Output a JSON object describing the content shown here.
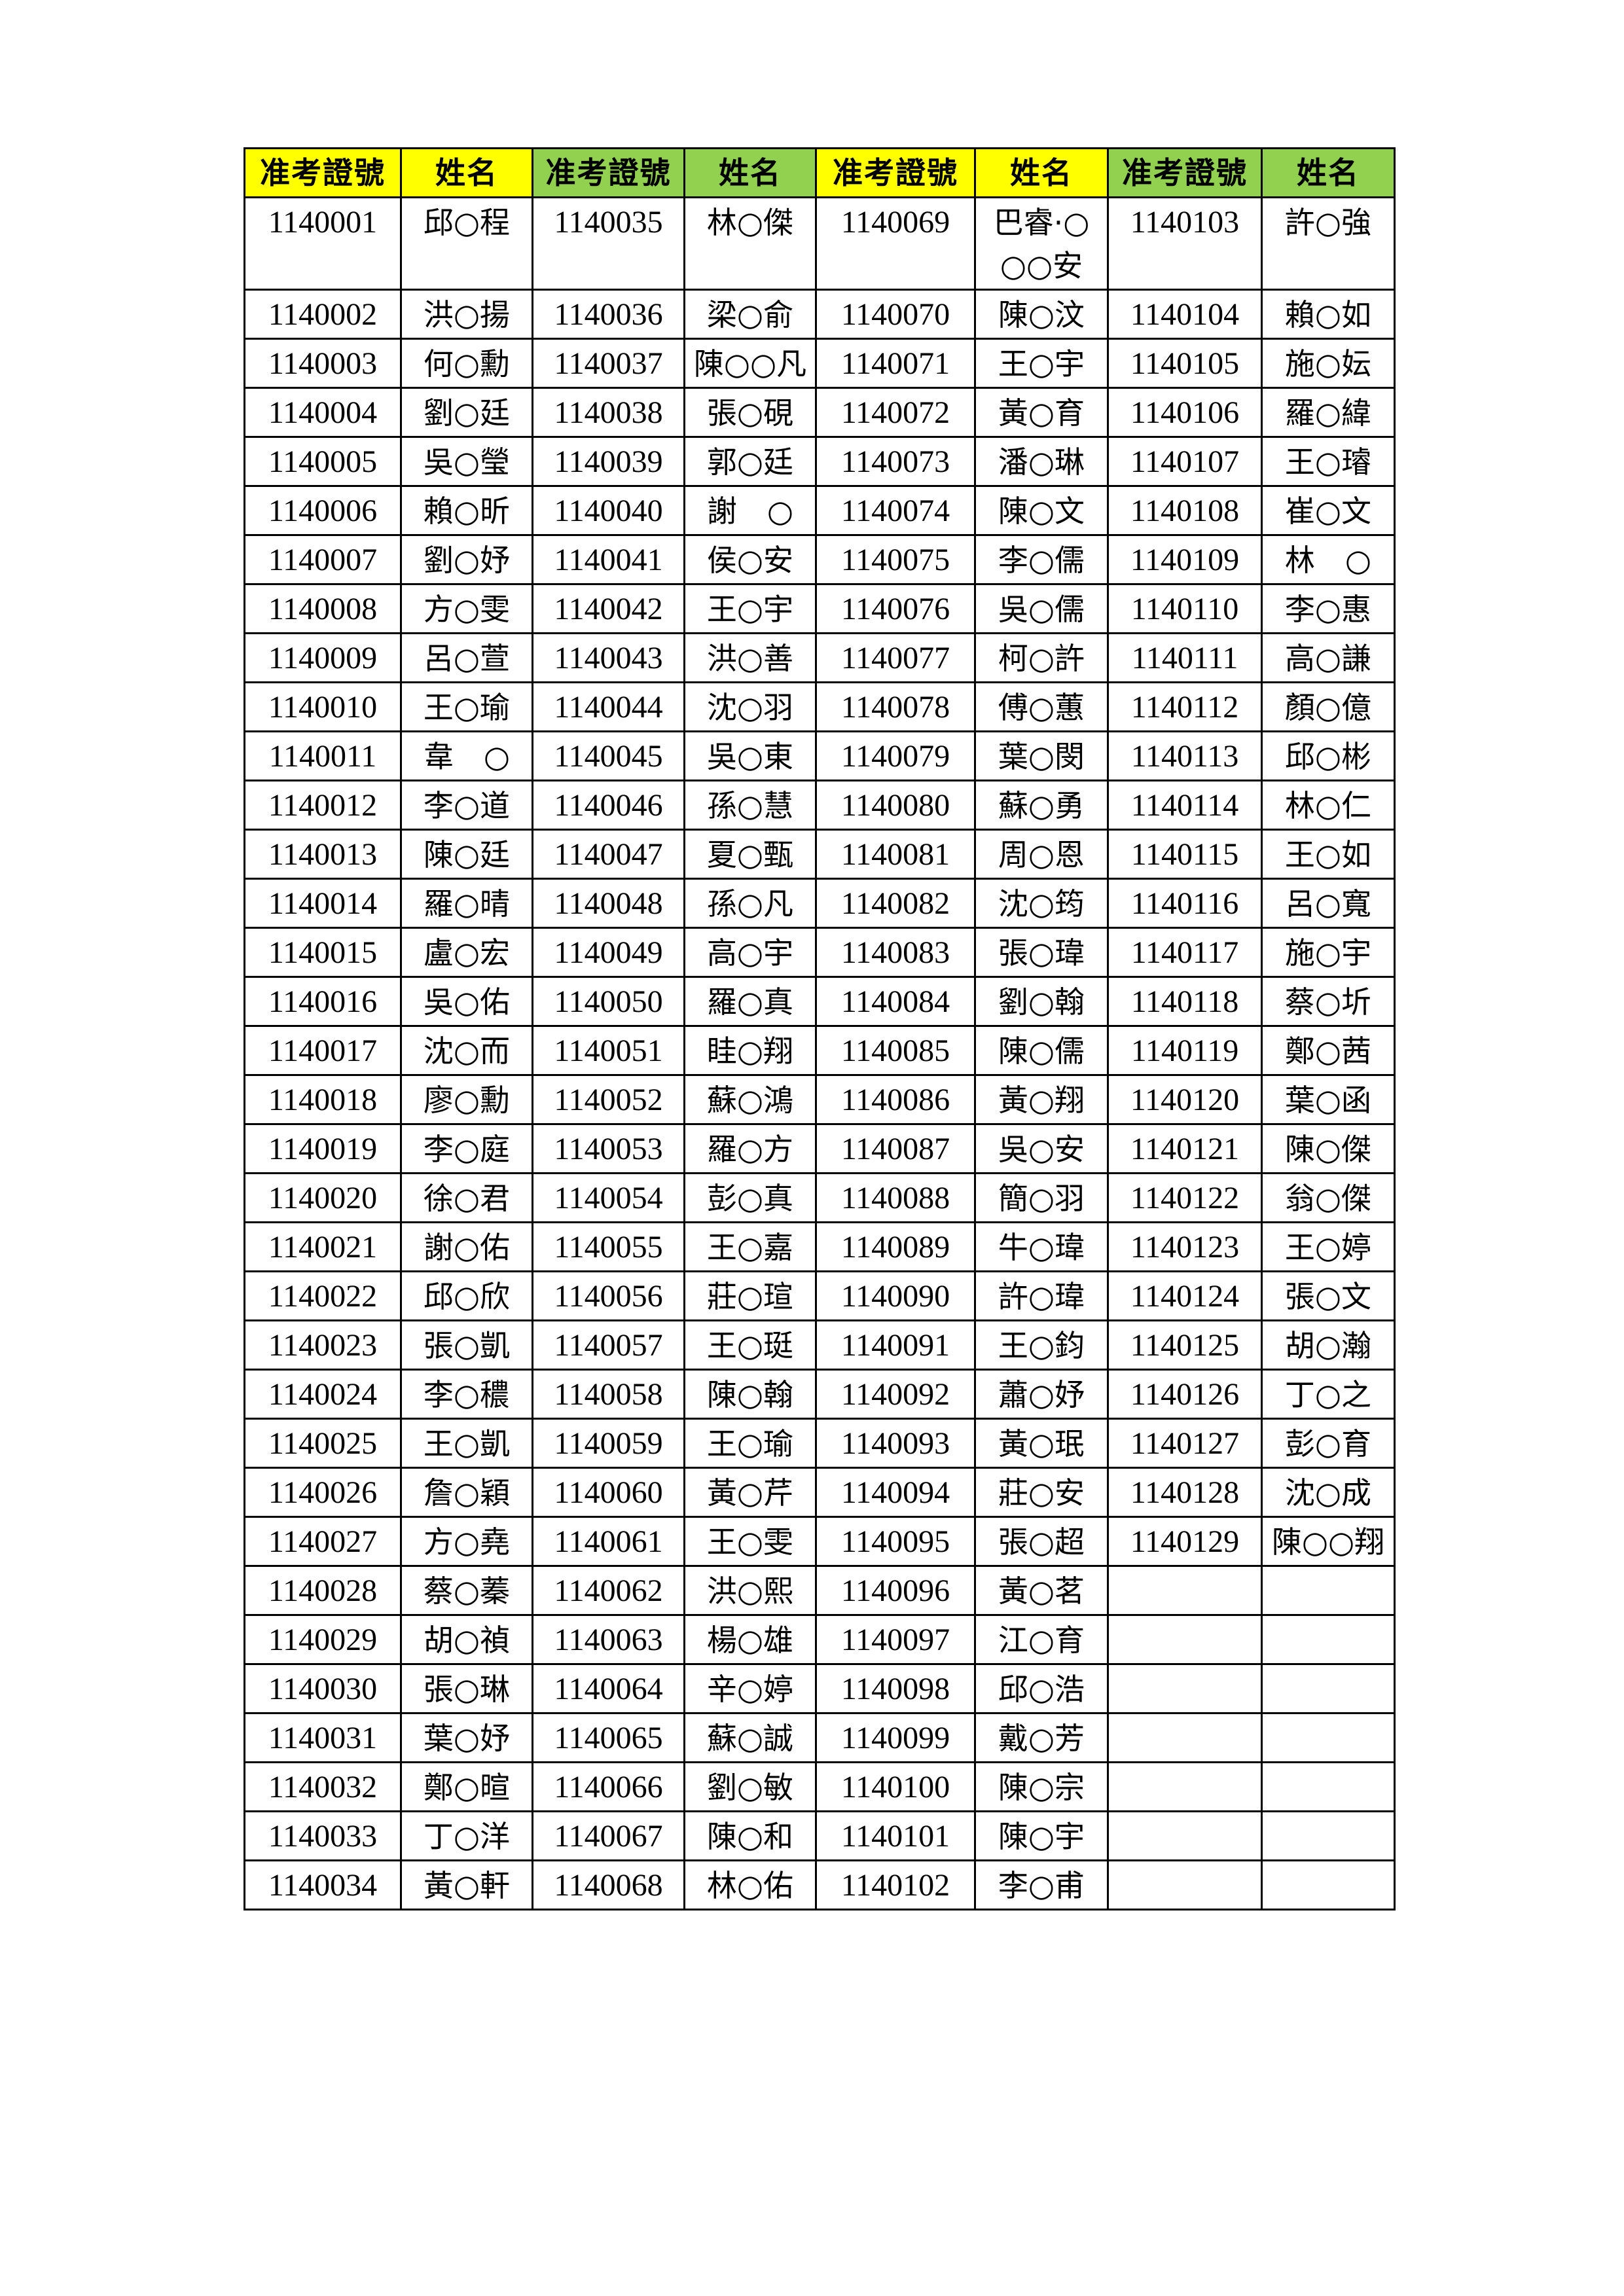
{
  "header": {
    "id_label": "准考證號",
    "name_label": "姓名"
  },
  "colors": {
    "header_a": "#FFFF00",
    "header_b": "#92D050",
    "border": "#000000"
  },
  "groups": [
    {
      "entries": [
        [
          "1140001",
          "邱○程"
        ],
        [
          "1140002",
          "洪○揚"
        ],
        [
          "1140003",
          "何○勳"
        ],
        [
          "1140004",
          "劉○廷"
        ],
        [
          "1140005",
          "吳○瑩"
        ],
        [
          "1140006",
          "賴○昕"
        ],
        [
          "1140007",
          "劉○妤"
        ],
        [
          "1140008",
          "方○雯"
        ],
        [
          "1140009",
          "呂○萱"
        ],
        [
          "1140010",
          "王○瑜"
        ],
        [
          "1140011",
          "韋　○"
        ],
        [
          "1140012",
          "李○道"
        ],
        [
          "1140013",
          "陳○廷"
        ],
        [
          "1140014",
          "羅○晴"
        ],
        [
          "1140015",
          "盧○宏"
        ],
        [
          "1140016",
          "吳○佑"
        ],
        [
          "1140017",
          "沈○而"
        ],
        [
          "1140018",
          "廖○勳"
        ],
        [
          "1140019",
          "李○庭"
        ],
        [
          "1140020",
          "徐○君"
        ],
        [
          "1140021",
          "謝○佑"
        ],
        [
          "1140022",
          "邱○欣"
        ],
        [
          "1140023",
          "張○凱"
        ],
        [
          "1140024",
          "李○穠"
        ],
        [
          "1140025",
          "王○凱"
        ],
        [
          "1140026",
          "詹○穎"
        ],
        [
          "1140027",
          "方○堯"
        ],
        [
          "1140028",
          "蔡○蓁"
        ],
        [
          "1140029",
          "胡○禎"
        ],
        [
          "1140030",
          "張○琳"
        ],
        [
          "1140031",
          "葉○妤"
        ],
        [
          "1140032",
          "鄭○暄"
        ],
        [
          "1140033",
          "丁○洋"
        ],
        [
          "1140034",
          "黃○軒"
        ]
      ]
    },
    {
      "entries": [
        [
          "1140035",
          "林○傑"
        ],
        [
          "1140036",
          "梁○俞"
        ],
        [
          "1140037",
          "陳○○凡"
        ],
        [
          "1140038",
          "張○硯"
        ],
        [
          "1140039",
          "郭○廷"
        ],
        [
          "1140040",
          "謝　○"
        ],
        [
          "1140041",
          "侯○安"
        ],
        [
          "1140042",
          "王○宇"
        ],
        [
          "1140043",
          "洪○善"
        ],
        [
          "1140044",
          "沈○羽"
        ],
        [
          "1140045",
          "吳○東"
        ],
        [
          "1140046",
          "孫○慧"
        ],
        [
          "1140047",
          "夏○甄"
        ],
        [
          "1140048",
          "孫○凡"
        ],
        [
          "1140049",
          "高○宇"
        ],
        [
          "1140050",
          "羅○真"
        ],
        [
          "1140051",
          "眭○翔"
        ],
        [
          "1140052",
          "蘇○鴻"
        ],
        [
          "1140053",
          "羅○方"
        ],
        [
          "1140054",
          "彭○真"
        ],
        [
          "1140055",
          "王○嘉"
        ],
        [
          "1140056",
          "莊○瑄"
        ],
        [
          "1140057",
          "王○珽"
        ],
        [
          "1140058",
          "陳○翰"
        ],
        [
          "1140059",
          "王○瑜"
        ],
        [
          "1140060",
          "黃○芹"
        ],
        [
          "1140061",
          "王○雯"
        ],
        [
          "1140062",
          "洪○熙"
        ],
        [
          "1140063",
          "楊○雄"
        ],
        [
          "1140064",
          "辛○婷"
        ],
        [
          "1140065",
          "蘇○誠"
        ],
        [
          "1140066",
          "劉○敏"
        ],
        [
          "1140067",
          "陳○和"
        ],
        [
          "1140068",
          "林○佑"
        ]
      ]
    },
    {
      "entries": [
        [
          "1140069",
          "巴睿·○○○安"
        ],
        [
          "1140070",
          "陳○汶"
        ],
        [
          "1140071",
          "王○宇"
        ],
        [
          "1140072",
          "黃○育"
        ],
        [
          "1140073",
          "潘○琳"
        ],
        [
          "1140074",
          "陳○文"
        ],
        [
          "1140075",
          "李○儒"
        ],
        [
          "1140076",
          "吳○儒"
        ],
        [
          "1140077",
          "柯○許"
        ],
        [
          "1140078",
          "傅○蕙"
        ],
        [
          "1140079",
          "葉○閔"
        ],
        [
          "1140080",
          "蘇○勇"
        ],
        [
          "1140081",
          "周○恩"
        ],
        [
          "1140082",
          "沈○筠"
        ],
        [
          "1140083",
          "張○瑋"
        ],
        [
          "1140084",
          "劉○翰"
        ],
        [
          "1140085",
          "陳○儒"
        ],
        [
          "1140086",
          "黃○翔"
        ],
        [
          "1140087",
          "吳○安"
        ],
        [
          "1140088",
          "簡○羽"
        ],
        [
          "1140089",
          "牛○瑋"
        ],
        [
          "1140090",
          "許○瑋"
        ],
        [
          "1140091",
          "王○鈞"
        ],
        [
          "1140092",
          "蕭○妤"
        ],
        [
          "1140093",
          "黃○珉"
        ],
        [
          "1140094",
          "莊○安"
        ],
        [
          "1140095",
          "張○超"
        ],
        [
          "1140096",
          "黃○茗"
        ],
        [
          "1140097",
          "江○育"
        ],
        [
          "1140098",
          "邱○浩"
        ],
        [
          "1140099",
          "戴○芳"
        ],
        [
          "1140100",
          "陳○宗"
        ],
        [
          "1140101",
          "陳○宇"
        ],
        [
          "1140102",
          "李○甫"
        ]
      ]
    },
    {
      "entries": [
        [
          "1140103",
          "許○強"
        ],
        [
          "1140104",
          "賴○如"
        ],
        [
          "1140105",
          "施○妘"
        ],
        [
          "1140106",
          "羅○緯"
        ],
        [
          "1140107",
          "王○璿"
        ],
        [
          "1140108",
          "崔○文"
        ],
        [
          "1140109",
          "林　○"
        ],
        [
          "1140110",
          "李○惠"
        ],
        [
          "1140111",
          "高○謙"
        ],
        [
          "1140112",
          "顏○億"
        ],
        [
          "1140113",
          "邱○彬"
        ],
        [
          "1140114",
          "林○仁"
        ],
        [
          "1140115",
          "王○如"
        ],
        [
          "1140116",
          "呂○寬"
        ],
        [
          "1140117",
          "施○宇"
        ],
        [
          "1140118",
          "蔡○圻"
        ],
        [
          "1140119",
          "鄭○茜"
        ],
        [
          "1140120",
          "葉○函"
        ],
        [
          "1140121",
          "陳○傑"
        ],
        [
          "1140122",
          "翁○傑"
        ],
        [
          "1140123",
          "王○婷"
        ],
        [
          "1140124",
          "張○文"
        ],
        [
          "1140125",
          "胡○瀚"
        ],
        [
          "1140126",
          "丁○之"
        ],
        [
          "1140127",
          "彭○育"
        ],
        [
          "1140128",
          "沈○成"
        ],
        [
          "1140129",
          "陳○○翔"
        ]
      ]
    }
  ]
}
